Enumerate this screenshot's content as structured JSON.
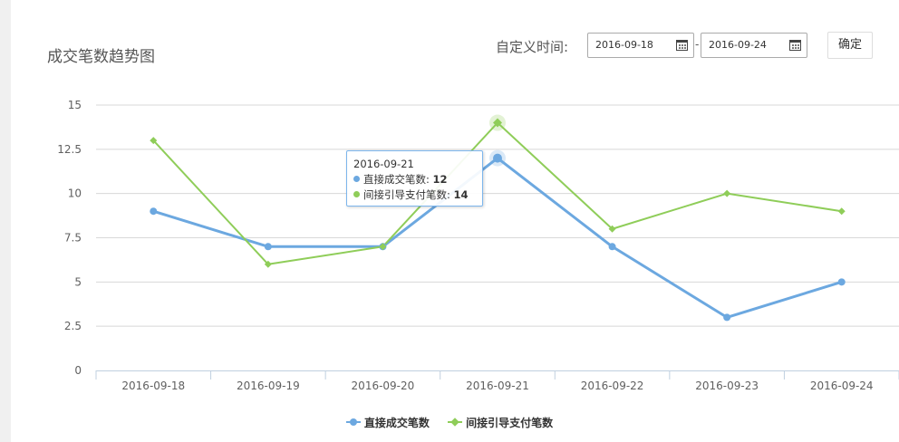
{
  "header": {
    "title": "成交笔数趋势图",
    "date_label": "自定义时间:",
    "start_date": "2016-09-18",
    "date_separator": "-",
    "end_date": "2016-09-24",
    "confirm_label": "确定"
  },
  "tooltip": {
    "date": "2016-09-21",
    "rows": [
      {
        "label": "直接成交笔数: ",
        "value": "12",
        "color": "#6ca8e0"
      },
      {
        "label": "间接引导支付笔数: ",
        "value": "14",
        "color": "#8fcd59"
      }
    ]
  },
  "chart_data": {
    "type": "line",
    "title": "成交笔数趋势图",
    "categories": [
      "2016-09-18",
      "2016-09-19",
      "2016-09-20",
      "2016-09-21",
      "2016-09-22",
      "2016-09-23",
      "2016-09-24"
    ],
    "ylim": [
      0,
      15
    ],
    "yticks": [
      "0",
      "2.5",
      "5",
      "7.5",
      "10",
      "12.5",
      "15"
    ],
    "grid": true,
    "legend_position": "bottom-center",
    "highlighted_category": "2016-09-21",
    "series": [
      {
        "name": "直接成交笔数",
        "values": [
          9,
          7,
          7,
          12,
          7,
          3,
          5
        ],
        "color": "#6ca8e0",
        "marker": "circle"
      },
      {
        "name": "间接引导支付笔数",
        "values": [
          13,
          6,
          7,
          14,
          8,
          10,
          9
        ],
        "color": "#8fcd59",
        "marker": "diamond"
      }
    ]
  }
}
